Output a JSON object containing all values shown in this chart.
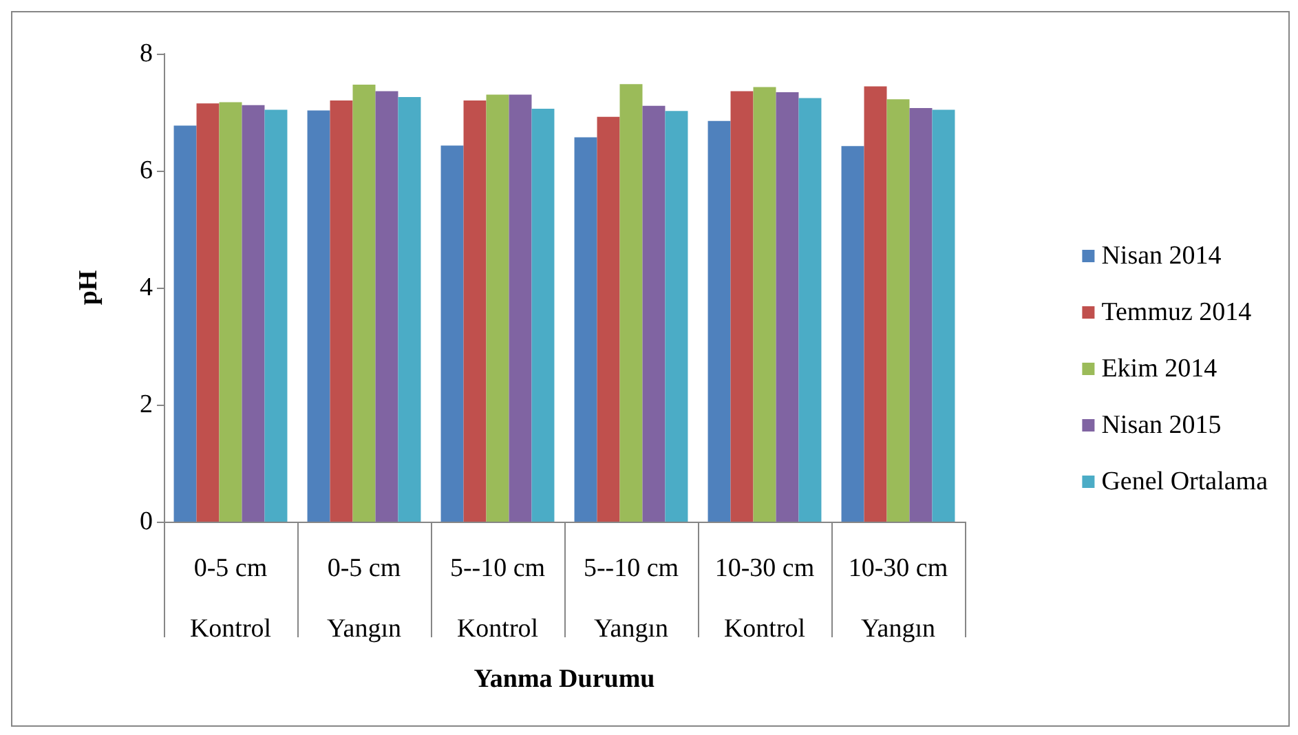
{
  "chart_data": {
    "type": "bar",
    "xlabel": "Yanma Durumu",
    "ylabel": "pH",
    "categories": [
      "0-5 cm\nKontrol",
      "0-5 cm\nYangın",
      "5--10 cm\nKontrol",
      "5--10 cm\nYangın",
      "10-30 cm\nKontrol",
      "10-30 cm\nYangın"
    ],
    "series": [
      {
        "name": "Nisan 2014",
        "color": "#4f81bd",
        "values": [
          6.77,
          7.03,
          6.43,
          6.57,
          6.85,
          6.42
        ]
      },
      {
        "name": "Temmuz 2014",
        "color": "#c0504d",
        "values": [
          7.15,
          7.2,
          7.2,
          6.92,
          7.36,
          7.44
        ]
      },
      {
        "name": "Ekim 2014",
        "color": "#9bbb59",
        "values": [
          7.17,
          7.47,
          7.3,
          7.48,
          7.43,
          7.22
        ]
      },
      {
        "name": "Nisan 2015",
        "color": "#8064a2",
        "values": [
          7.12,
          7.36,
          7.3,
          7.11,
          7.34,
          7.07
        ]
      },
      {
        "name": "Genel Ortalama",
        "color": "#4bacc6",
        "values": [
          7.04,
          7.26,
          7.06,
          7.02,
          7.24,
          7.04
        ]
      }
    ],
    "ylim": [
      0,
      8
    ],
    "yticks": [
      0,
      2,
      4,
      6,
      8
    ],
    "grid": false,
    "legend": "right"
  }
}
